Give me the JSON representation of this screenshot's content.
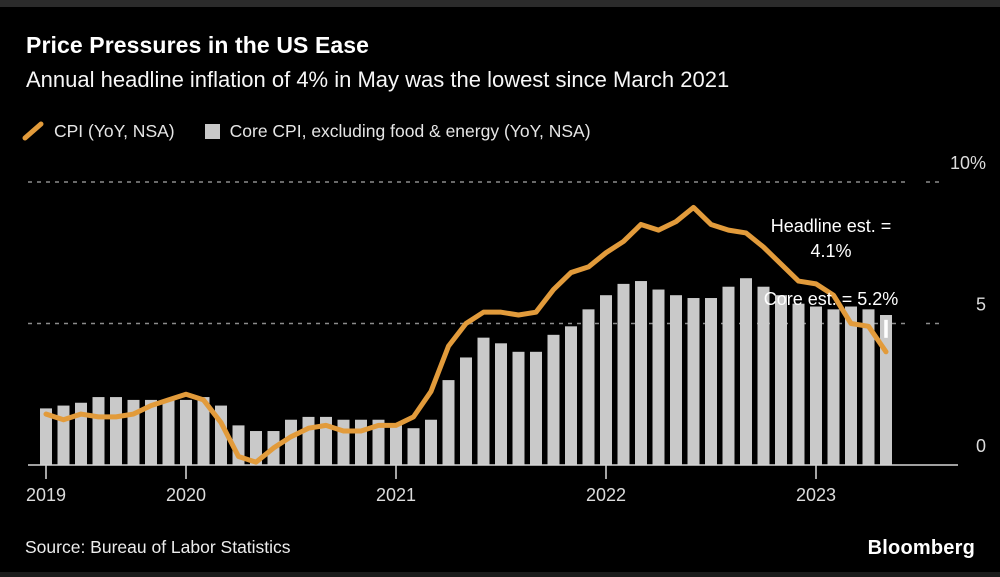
{
  "header": {
    "title": "Price Pressures in the US Ease",
    "subtitle": "Annual headline inflation of 4% in May was the lowest since March 2021"
  },
  "legend": [
    {
      "label": "CPI (YoY, NSA)",
      "swatch": "orange-diagonal-line",
      "color": "#E29B3B"
    },
    {
      "label": "Core CPI, excluding food & energy (YoY, NSA)",
      "swatch": "gray-square",
      "color": "#C9C9C9"
    }
  ],
  "chart_data": {
    "type": "combo-bar-line",
    "x_start_month": "2019-05",
    "x_end_month": "2023-05",
    "months_count": 49,
    "series": [
      {
        "name": "CPI (YoY, NSA)",
        "type": "line",
        "color": "#E29B3B",
        "values": [
          1.8,
          1.6,
          1.8,
          1.7,
          1.7,
          1.8,
          2.1,
          2.3,
          2.5,
          2.3,
          1.5,
          0.3,
          0.1,
          0.6,
          1.0,
          1.3,
          1.4,
          1.2,
          1.2,
          1.4,
          1.4,
          1.7,
          2.6,
          4.2,
          5.0,
          5.4,
          5.4,
          5.3,
          5.4,
          6.2,
          6.8,
          7.0,
          7.5,
          7.9,
          8.5,
          8.3,
          8.6,
          9.1,
          8.5,
          8.3,
          8.2,
          7.7,
          7.1,
          6.5,
          6.4,
          6.0,
          5.0,
          4.9,
          4.0
        ]
      },
      {
        "name": "Core CPI, excluding food & energy (YoY, NSA)",
        "type": "bar",
        "color": "#C9C9C9",
        "values": [
          2.0,
          2.1,
          2.2,
          2.4,
          2.4,
          2.3,
          2.3,
          2.3,
          2.3,
          2.4,
          2.1,
          1.4,
          1.2,
          1.2,
          1.6,
          1.7,
          1.7,
          1.6,
          1.6,
          1.6,
          1.4,
          1.3,
          1.6,
          3.0,
          3.8,
          4.5,
          4.3,
          4.0,
          4.0,
          4.6,
          4.9,
          5.5,
          6.0,
          6.4,
          6.5,
          6.2,
          6.0,
          5.9,
          5.9,
          6.3,
          6.6,
          6.3,
          6.0,
          5.7,
          5.6,
          5.5,
          5.6,
          5.5,
          5.3
        ]
      }
    ],
    "ylim": [
      0,
      10
    ],
    "yticks": [
      {
        "value": 0,
        "label": "0"
      },
      {
        "value": 5,
        "label": "5"
      },
      {
        "value": 10,
        "label": "10%"
      }
    ],
    "xticks": [
      {
        "month_index": 0,
        "label": "2019"
      },
      {
        "month_index": 8,
        "label": "2020"
      },
      {
        "month_index": 20,
        "label": "2021"
      },
      {
        "month_index": 32,
        "label": "2022"
      },
      {
        "month_index": 44,
        "label": "2023"
      }
    ],
    "grid": "dashed horizontal at 5 and 10, solid baseline at 0",
    "legend_position": "top-left above plot",
    "annotations": {
      "headline": "Headline est. =\n4.1%",
      "core": "Core est. = 5.2%"
    },
    "estimate_marker": {
      "month_index": 48,
      "value": 5.2,
      "color": "#ffffff"
    }
  },
  "footer": {
    "source": "Source: Bureau of Labor Statistics",
    "brand": "Bloomberg"
  }
}
